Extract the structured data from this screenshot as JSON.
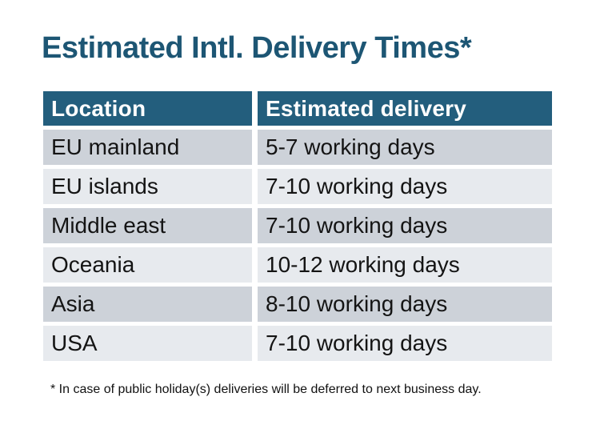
{
  "title": "Estimated Intl. Delivery Times*",
  "table": {
    "headers": [
      "Location",
      "Estimated delivery"
    ],
    "rows": [
      {
        "location": "EU mainland",
        "delivery": "5-7 working days"
      },
      {
        "location": "EU islands",
        "delivery": "7-10 working days"
      },
      {
        "location": "Middle east",
        "delivery": "7-10 working days"
      },
      {
        "location": "Oceania",
        "delivery": "10-12 working days"
      },
      {
        "location": "Asia",
        "delivery": "8-10 working days"
      },
      {
        "location": "USA",
        "delivery": "7-10 working days"
      }
    ]
  },
  "footnote": "* In case of public holiday(s) deliveries will be deferred to next business day.",
  "colors": {
    "title": "#1D5674",
    "header_bg": "#235E7D",
    "header_text": "#FFFFFF",
    "row_dark": "#CDD2D9",
    "row_light": "#E7EAEE",
    "body_text": "#141414",
    "footnote_text": "#111111",
    "page_bg": "#FFFFFF"
  }
}
